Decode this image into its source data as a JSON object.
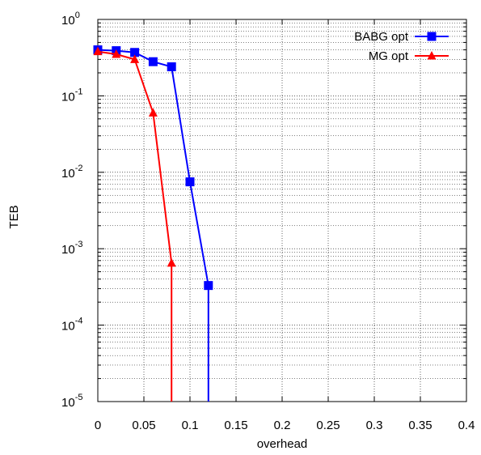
{
  "chart_data": {
    "type": "line",
    "xlabel": "overhead",
    "ylabel": "TEB",
    "xlim": [
      0,
      0.4
    ],
    "ylim": [
      1e-05,
      1
    ],
    "yscale": "log",
    "grid": true,
    "legend_position": "top-right",
    "x_ticks": [
      "0",
      "0.05",
      "0.1",
      "0.15",
      "0.2",
      "0.25",
      "0.3",
      "0.35",
      "0.4"
    ],
    "x_tick_values": [
      0,
      0.05,
      0.1,
      0.15,
      0.2,
      0.25,
      0.3,
      0.35,
      0.4
    ],
    "y_ticks": [
      {
        "base": "10",
        "exp": "0",
        "value": 1
      },
      {
        "base": "10",
        "exp": "-1",
        "value": 0.1
      },
      {
        "base": "10",
        "exp": "-2",
        "value": 0.01
      },
      {
        "base": "10",
        "exp": "-3",
        "value": 0.001
      },
      {
        "base": "10",
        "exp": "-4",
        "value": 0.0001
      },
      {
        "base": "10",
        "exp": "-5",
        "value": 1e-05
      }
    ],
    "series": [
      {
        "name": "BABG opt",
        "color": "#0000ff",
        "marker": "square",
        "x": [
          0,
          0.02,
          0.04,
          0.06,
          0.08,
          0.1,
          0.12
        ],
        "y": [
          0.4,
          0.39,
          0.37,
          0.28,
          0.24,
          0.0075,
          0.00033
        ],
        "drop_to_floor_at_x": 0.12
      },
      {
        "name": "MG opt",
        "color": "#ff0000",
        "marker": "triangle",
        "x": [
          0,
          0.02,
          0.04,
          0.06,
          0.08
        ],
        "y": [
          0.38,
          0.35,
          0.3,
          0.06,
          0.00065
        ],
        "drop_to_floor_at_x": 0.08
      }
    ]
  }
}
